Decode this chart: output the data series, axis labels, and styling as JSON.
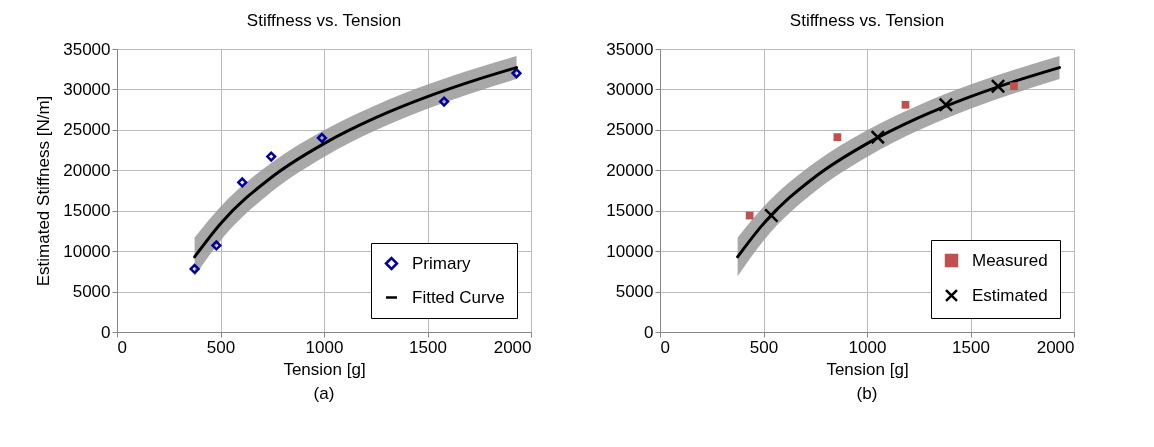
{
  "chart_data": [
    {
      "type": "scatter",
      "title": "Stiffness vs. Tension",
      "xlabel": "Tension [g]",
      "ylabel": "Estimated Stiffness [N/m]",
      "annotations": [
        "(a)"
      ],
      "xlim": [
        0,
        2000
      ],
      "xticks": [
        0,
        500,
        1000,
        1500,
        2000
      ],
      "ylim": [
        0,
        35000
      ],
      "yticks": [
        0,
        5000,
        10000,
        15000,
        20000,
        25000,
        30000,
        35000
      ],
      "grid": true,
      "legend": "bottom right",
      "series": [
        {
          "name": "Primary",
          "color": "#0000a0",
          "marker": "diamond",
          "x": [
            375,
            480,
            605,
            745,
            990,
            1580,
            1930
          ],
          "values": [
            7800,
            10700,
            18500,
            21700,
            24000,
            28500,
            32000
          ]
        },
        {
          "type": "line",
          "name": "Fitted Curve",
          "color": "#000000",
          "x": [
            375,
            500,
            750,
            1000,
            1250,
            1500,
            1750,
            1930
          ],
          "values": [
            9300,
            13400,
            19200,
            23300,
            26500,
            29100,
            31300,
            32700
          ],
          "lower": [
            6900,
            11300,
            17400,
            21650,
            24950,
            27600,
            29850,
            31280
          ],
          "upper": [
            11700,
            15500,
            21000,
            24950,
            28050,
            30600,
            32750,
            34120
          ]
        }
      ]
    },
    {
      "type": "scatter",
      "title": "Stiffness vs. Tension",
      "xlabel": "Tension [g]",
      "annotations": [
        "(b)"
      ],
      "xlim": [
        0,
        2000
      ],
      "xticks": [
        0,
        500,
        1000,
        1500,
        2000
      ],
      "ylim": [
        0,
        35000
      ],
      "yticks": [
        0,
        5000,
        10000,
        15000,
        20000,
        25000,
        30000,
        35000
      ],
      "grid": true,
      "legend": "bottom right",
      "series": [
        {
          "type": "line",
          "color": "#000000",
          "x": [
            375,
            500,
            750,
            1000,
            1250,
            1500,
            1750,
            1930
          ],
          "values": [
            9300,
            13400,
            19200,
            23300,
            26500,
            29100,
            31300,
            32700
          ],
          "lower": [
            6900,
            11300,
            17400,
            21650,
            24950,
            27600,
            29850,
            31280
          ],
          "upper": [
            11700,
            15500,
            21000,
            24950,
            28050,
            30600,
            32750,
            34120
          ]
        },
        {
          "name": "Measured",
          "color": "#c0504d",
          "marker": "square",
          "x": [
            433,
            857,
            1186,
            1710
          ],
          "values": [
            14400,
            24100,
            28100,
            30400
          ]
        },
        {
          "name": "Estimated",
          "color": "#000000",
          "marker": "cross",
          "x": [
            538,
            1052,
            1381,
            1633
          ],
          "values": [
            14400,
            24100,
            28100,
            30400
          ]
        }
      ]
    }
  ]
}
